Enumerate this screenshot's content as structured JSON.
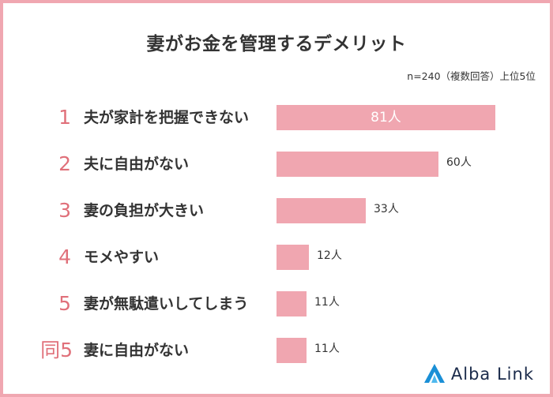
{
  "title": "妻がお金を管理するデメリット",
  "note": "n=240（複数回答）上位5位",
  "brand": "Alba Link",
  "colors": {
    "bar": "#f0a6b0",
    "rank": "#e0707a",
    "border": "#f0a7b1"
  },
  "chart_data": {
    "type": "bar",
    "orientation": "horizontal",
    "title": "妻がお金を管理するデメリット",
    "ranks": [
      "1",
      "2",
      "3",
      "4",
      "5",
      "同5"
    ],
    "categories": [
      "夫が家計を把握できない",
      "夫に自由がない",
      "妻の負担が大きい",
      "モメやすい",
      "妻が無駄遣いしてしまう",
      "妻に自由がない"
    ],
    "values": [
      81,
      60,
      33,
      12,
      11,
      11
    ],
    "value_labels": [
      "81人",
      "60人",
      "33人",
      "12人",
      "11人",
      "11人"
    ],
    "xlim": [
      0,
      81
    ]
  }
}
